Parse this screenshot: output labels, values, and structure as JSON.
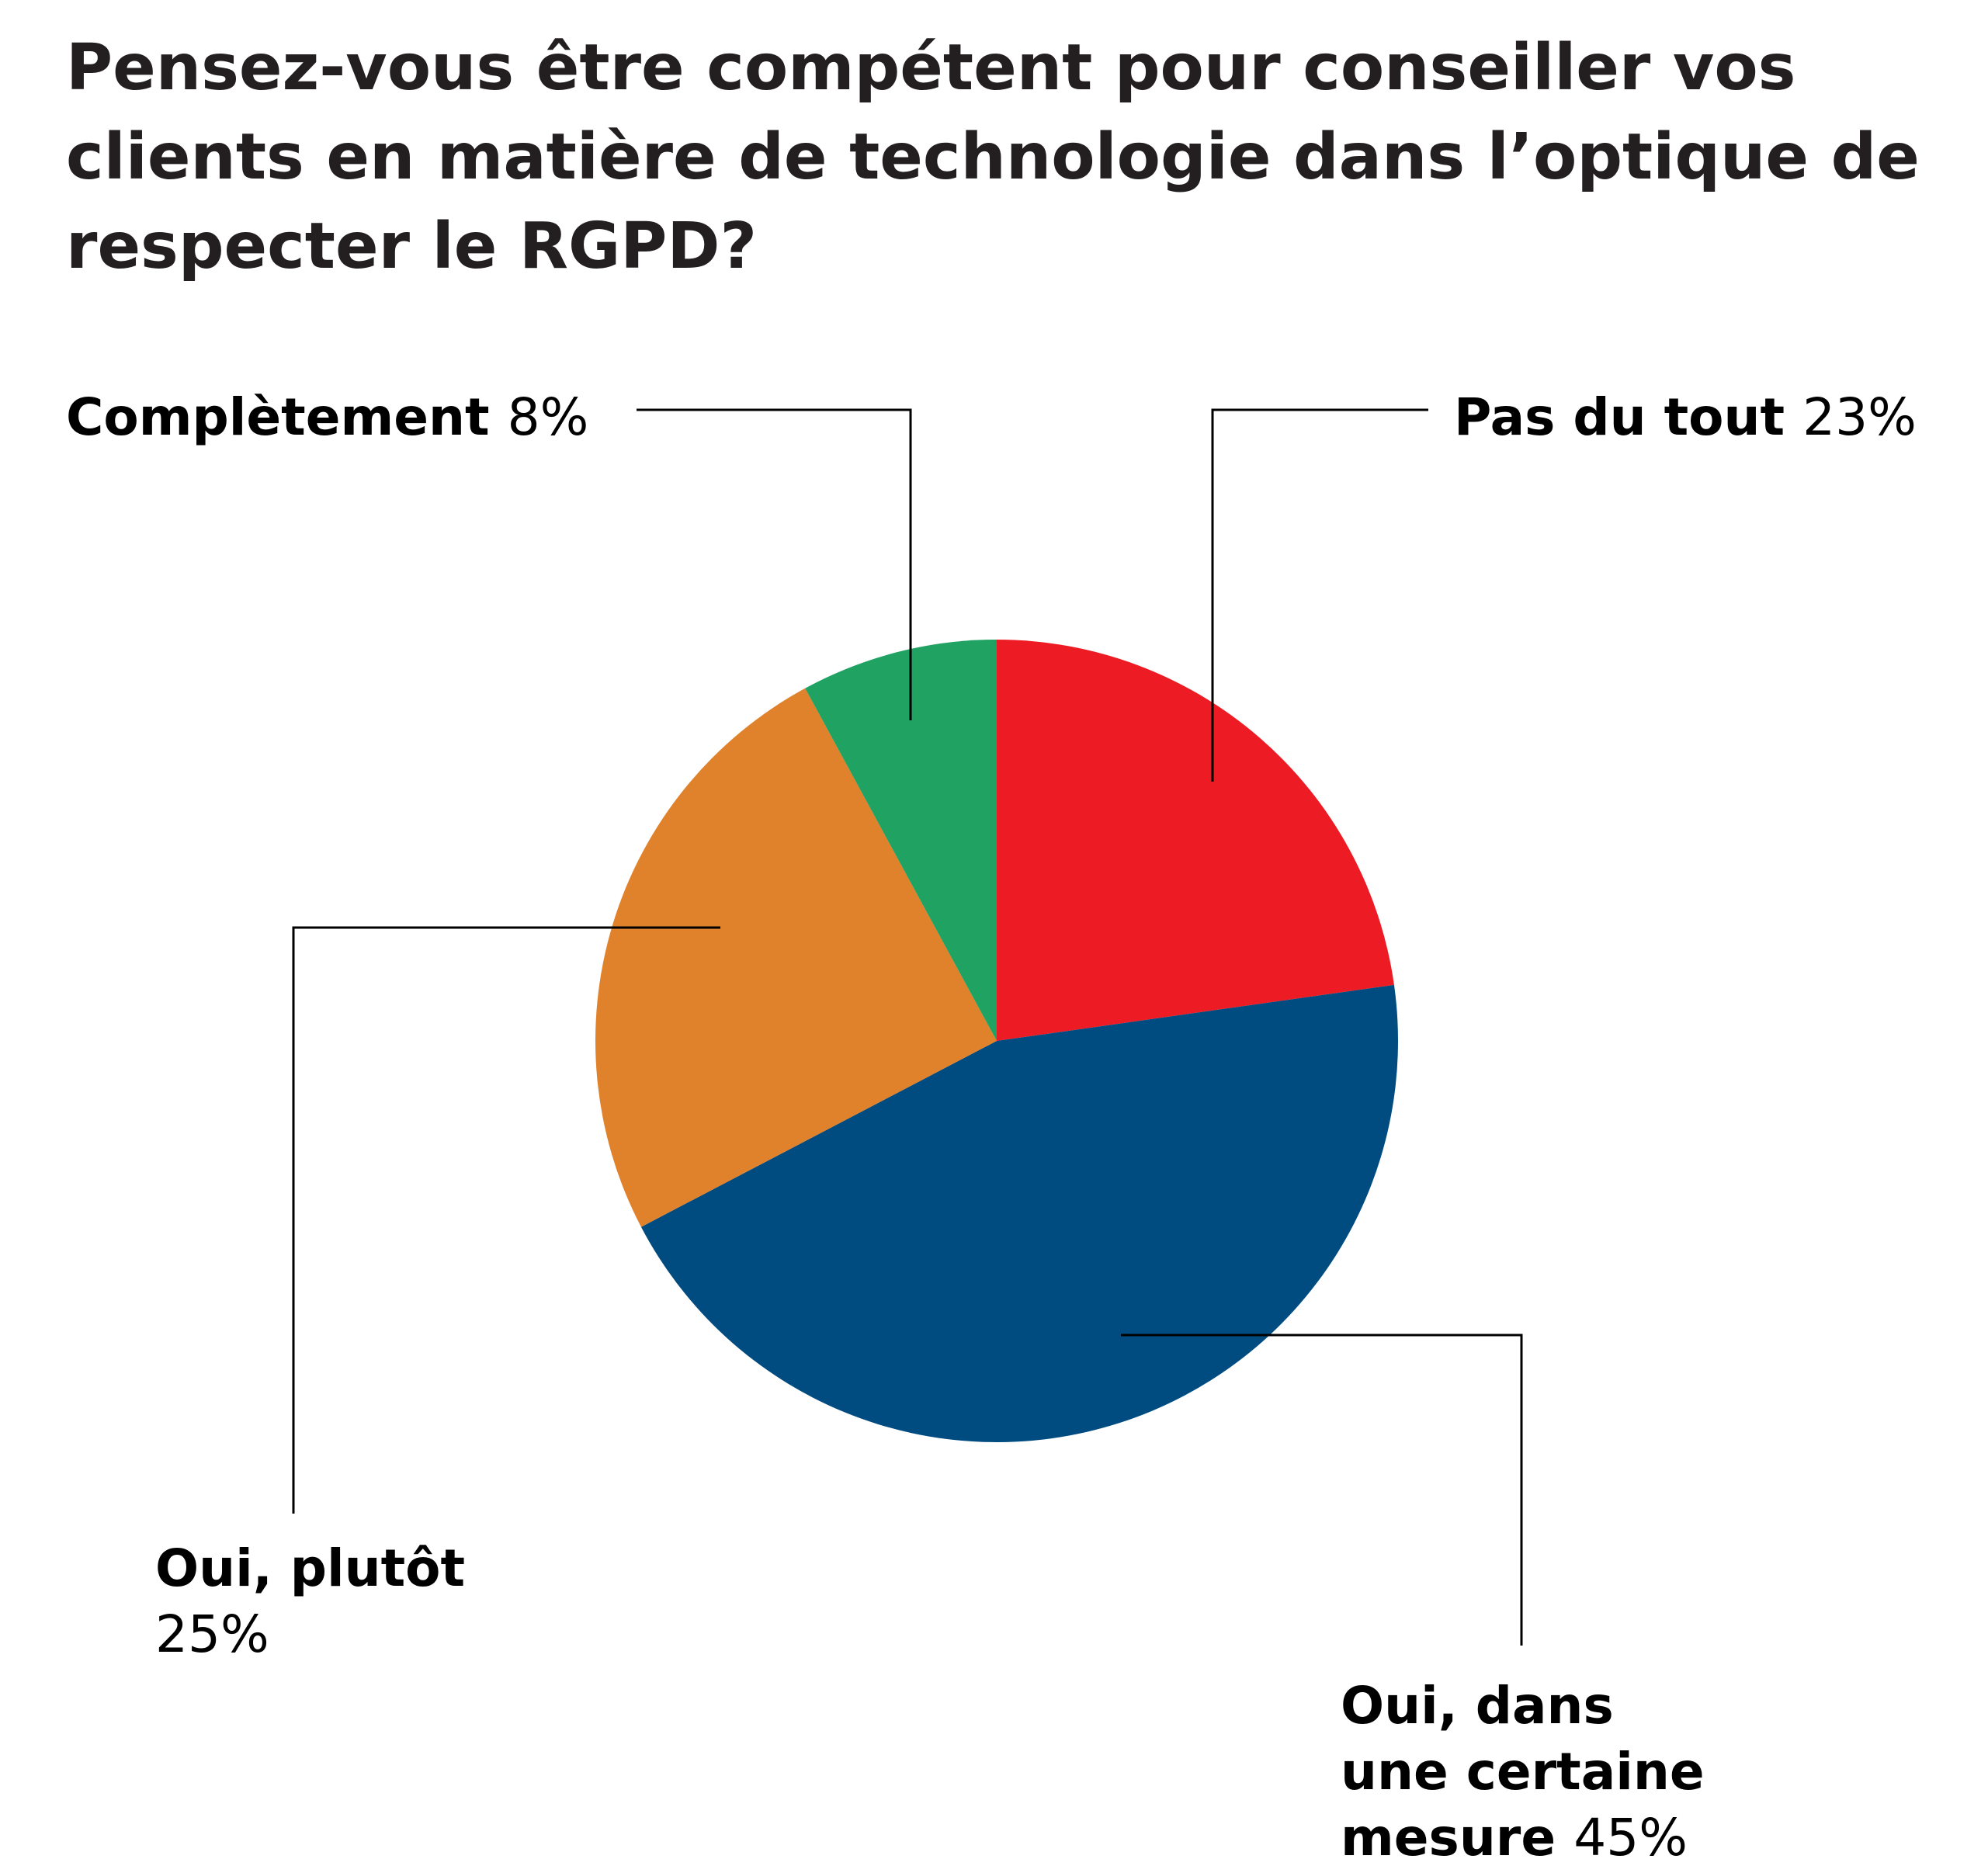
{
  "chart_data": {
    "type": "pie",
    "title_lines": [
      "Pensez-vous être compétent pour conseiller vos",
      "clients en matière de technologie dans l’optique de",
      "respecter le RGPD?"
    ],
    "slices": [
      {
        "label_lines": [
          "Pas du tout"
        ],
        "value_text": "23%",
        "value": 23,
        "color": "#ed1c24"
      },
      {
        "label_lines": [
          "Oui, dans",
          "une certaine",
          "mesure"
        ],
        "value_text": "45%",
        "value": 45,
        "color": "#004b80"
      },
      {
        "label_lines": [
          "Oui, plutôt"
        ],
        "value_text": "25%",
        "value": 25,
        "color": "#e0822b"
      },
      {
        "label_lines": [
          "Complètement"
        ],
        "value_text": "8%",
        "value": 8,
        "color": "#1fa262"
      }
    ],
    "start_angle_deg": 0,
    "direction": "clockwise",
    "legend": "none"
  }
}
